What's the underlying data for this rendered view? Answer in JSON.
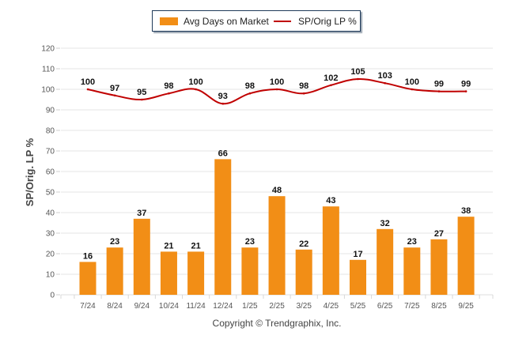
{
  "chart_data": {
    "type": "bar",
    "title": "",
    "xlabel": "",
    "ylabel": "SP/Orig. LP %",
    "ylim": [
      0,
      120
    ],
    "yticks": [
      0,
      10,
      20,
      30,
      40,
      50,
      60,
      70,
      80,
      90,
      100,
      110,
      120
    ],
    "grid": true,
    "legend_position": "top-center",
    "categories": [
      "7/24",
      "8/24",
      "9/24",
      "10/24",
      "11/24",
      "12/24",
      "1/25",
      "2/25",
      "3/25",
      "4/25",
      "5/25",
      "6/25",
      "7/25",
      "8/25",
      "9/25"
    ],
    "series": [
      {
        "name": "Avg Days on Market",
        "type": "bar",
        "color": "#f28e16",
        "values": [
          16,
          23,
          37,
          21,
          21,
          66,
          23,
          48,
          22,
          43,
          17,
          32,
          23,
          27,
          38
        ]
      },
      {
        "name": "SP/Orig LP %",
        "type": "line",
        "color": "#c00000",
        "values": [
          100,
          97,
          95,
          98,
          100,
          93,
          98,
          100,
          98,
          102,
          105,
          103,
          100,
          99,
          99
        ]
      }
    ],
    "footer": "Copyright © Trendgraphix, Inc."
  }
}
